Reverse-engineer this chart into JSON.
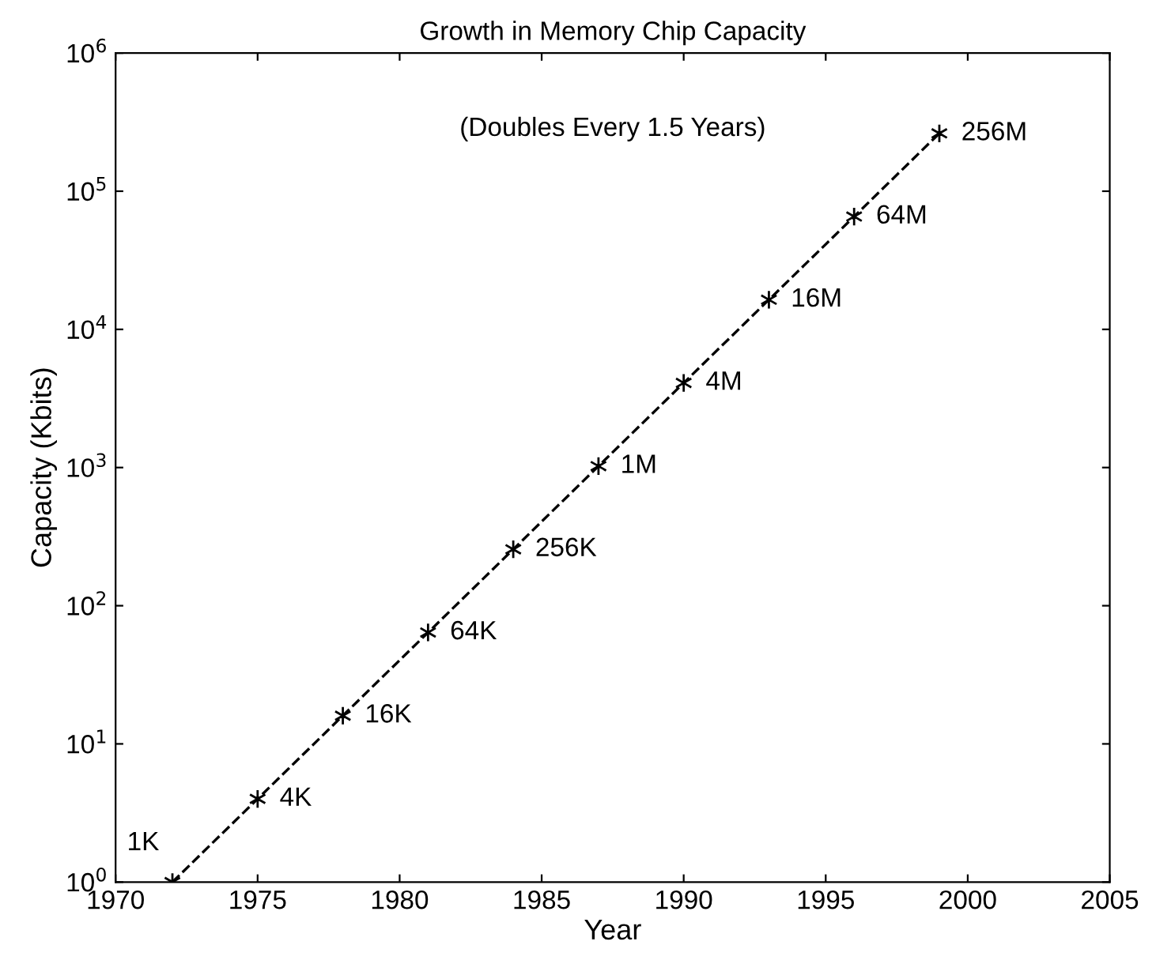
{
  "chart_data": {
    "type": "line",
    "title": "Growth in Memory Chip Capacity",
    "xlabel": "Year",
    "ylabel": "Capacity (Kbits)",
    "annotations": [
      "(Doubles Every 1.5 Years)",
      {
        "text": "1K",
        "x": 1972,
        "y": 1
      },
      {
        "text": "4K",
        "x": 1975,
        "y": 4
      },
      {
        "text": "16K",
        "x": 1978,
        "y": 16
      },
      {
        "text": "64K",
        "x": 1981,
        "y": 64
      },
      {
        "text": "256K",
        "x": 1984,
        "y": 256
      },
      {
        "text": "1M",
        "x": 1987,
        "y": 1024
      },
      {
        "text": "4M",
        "x": 1990,
        "y": 4096
      },
      {
        "text": "16M",
        "x": 1993,
        "y": 16384
      },
      {
        "text": "64M",
        "x": 1996,
        "y": 65536
      },
      {
        "text": "256M",
        "x": 1999,
        "y": 262144
      }
    ],
    "x": [
      1972,
      1975,
      1978,
      1981,
      1984,
      1987,
      1990,
      1993,
      1996,
      1999
    ],
    "series": [
      {
        "color": "#000000",
        "values": [
          1,
          4,
          16,
          64,
          256,
          1024,
          4096,
          16384,
          65536,
          262144
        ]
      }
    ],
    "log": "y",
    "marker": "cross",
    "line_style": "dashed",
    "grid": false,
    "xlim": [
      1970,
      2005
    ],
    "xticks": [
      1970,
      1975,
      1980,
      1985,
      1990,
      1995,
      2000,
      2005
    ],
    "ylim": [
      1,
      1000000
    ],
    "yticks": [
      {
        "value": 1,
        "label": "10$^{0}$"
      },
      {
        "value": 10,
        "label": "10$^{1}$"
      },
      {
        "value": 100,
        "label": "10$^{2}$"
      },
      {
        "value": 1000,
        "label": "10$^{3}$"
      },
      {
        "value": 10000,
        "label": "10$^{4}$"
      },
      {
        "value": 100000,
        "label": "10$^{5}$"
      },
      {
        "value": 1000000,
        "label": "10$^{6}$"
      }
    ]
  }
}
